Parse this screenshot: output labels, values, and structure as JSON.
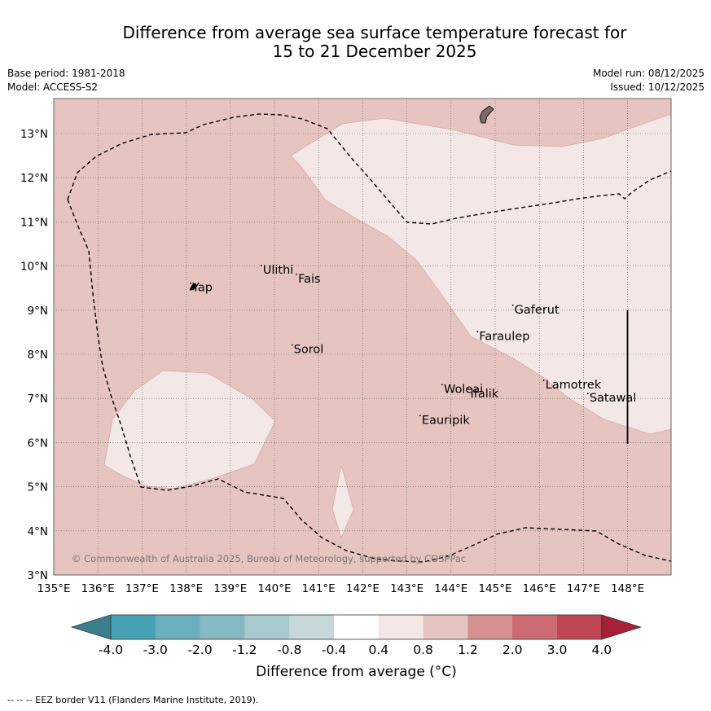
{
  "title": {
    "line1": "Difference from average sea surface temperature forecast for",
    "line2": "15 to 21 December 2025"
  },
  "meta": {
    "base_period": "Base period: 1981-2018",
    "model": "Model: ACCESS-S2",
    "model_run": "Model run: 08/12/2025",
    "issued": "Issued: 10/12/2025"
  },
  "map": {
    "lon_ticks": [
      "135°E",
      "136°E",
      "137°E",
      "138°E",
      "139°E",
      "140°E",
      "141°E",
      "142°E",
      "143°E",
      "144°E",
      "145°E",
      "146°E",
      "147°E",
      "148°E"
    ],
    "lat_ticks": [
      "3°N",
      "4°N",
      "5°N",
      "6°N",
      "7°N",
      "8°N",
      "9°N",
      "10°N",
      "11°N",
      "12°N",
      "13°N"
    ],
    "places": [
      {
        "name": "Yap",
        "lon": 138.1,
        "lat": 9.5
      },
      {
        "name": "Ulithi",
        "lon": 139.7,
        "lat": 9.9
      },
      {
        "name": "Fais",
        "lon": 140.5,
        "lat": 9.7
      },
      {
        "name": "Sorol",
        "lon": 140.4,
        "lat": 8.1
      },
      {
        "name": "Gaferut",
        "lon": 145.4,
        "lat": 9.0
      },
      {
        "name": "Faraulep",
        "lon": 144.6,
        "lat": 8.4
      },
      {
        "name": "Woleai",
        "lon": 143.8,
        "lat": 7.2
      },
      {
        "name": "Ifalik",
        "lon": 144.4,
        "lat": 7.1
      },
      {
        "name": "Lamotrek",
        "lon": 146.1,
        "lat": 7.3
      },
      {
        "name": "Satawal",
        "lon": 147.1,
        "lat": 7.0
      },
      {
        "name": "Eauripik",
        "lon": 143.3,
        "lat": 6.5
      }
    ],
    "copyright": "© Commonwealth of Australia 2025, Bureau of Meteorology, supported by COSPPac",
    "background_class_color": "#e6c5c1",
    "warm_class_color": "#f4e8e6"
  },
  "colorbar": {
    "labels": [
      "-4.0",
      "-3.0",
      "-2.0",
      "-1.2",
      "-0.8",
      "-0.4",
      "0.4",
      "0.8",
      "1.2",
      "2.0",
      "3.0",
      "4.0"
    ],
    "colors": [
      "#45a1b4",
      "#6aafbd",
      "#86b9c4",
      "#a8c9ce",
      "#c6d8db",
      "#ffffff",
      "#f4e8e6",
      "#e6c5c1",
      "#d6908f",
      "#cc6b73",
      "#bf4655"
    ],
    "low_extend_color": "#3b7f8c",
    "high_extend_color": "#a82037",
    "axis_label": "Difference from average (°C)"
  },
  "footnote": "--  --  -- EEZ border V11 (Flanders Marine Institute, 2019)."
}
